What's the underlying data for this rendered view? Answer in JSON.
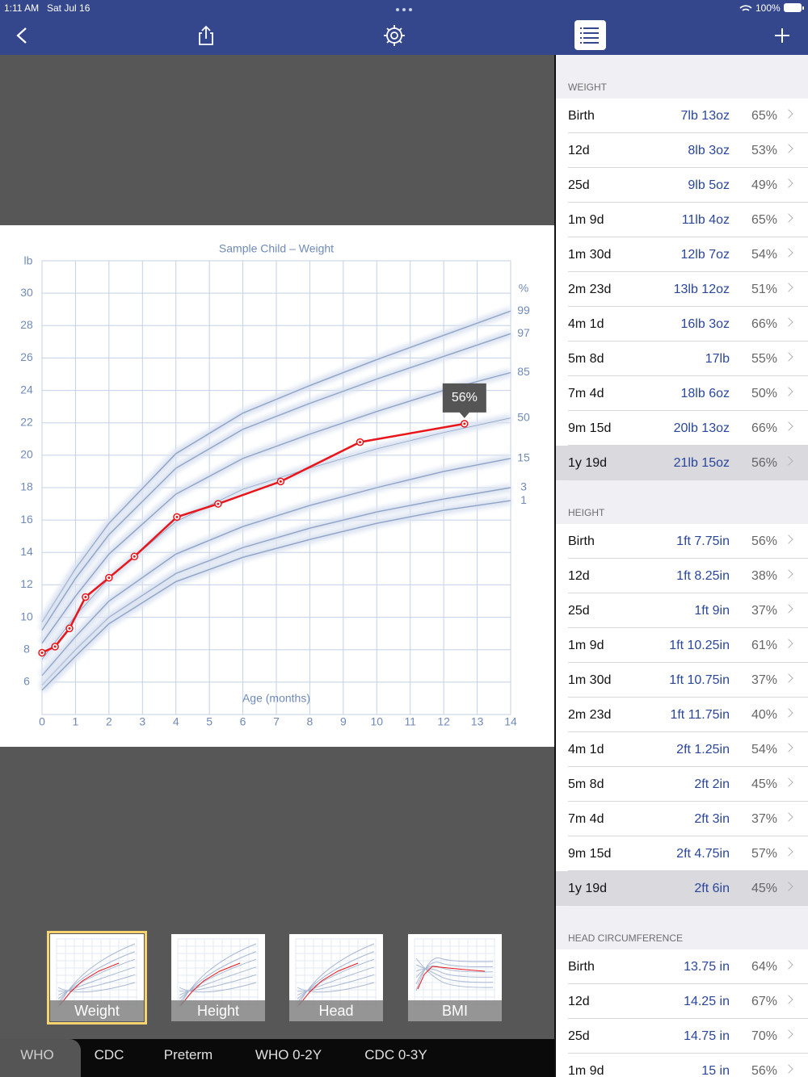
{
  "status_bar": {
    "time": "1:11 AM",
    "date": "Sat Jul 16",
    "battery": "100%"
  },
  "chart_data": {
    "type": "line",
    "title": "Sample Child – Weight",
    "y_unit": "lb",
    "x_label": "Age (months)",
    "x": [
      0,
      0.39,
      0.82,
      1.3,
      2.0,
      2.76,
      4.03,
      5.26,
      7.13,
      9.5,
      12.62
    ],
    "values": [
      7.81,
      8.19,
      9.31,
      11.25,
      12.44,
      13.75,
      16.19,
      17,
      18.38,
      20.81,
      21.94
    ],
    "color": "#e8161b",
    "annotation": "56%",
    "percentile_label": "%",
    "percentile_x": [
      0,
      1,
      2,
      4,
      6,
      8,
      10,
      12,
      14
    ],
    "percentile_series": [
      {
        "name": "99",
        "color": "#8ea3c6",
        "values": [
          9.7,
          13.0,
          15.8,
          20.1,
          22.6,
          24.3,
          25.9,
          27.4,
          28.9
        ]
      },
      {
        "name": "97",
        "color": "#8ea3c6",
        "values": [
          9.2,
          12.4,
          15.1,
          19.2,
          21.6,
          23.2,
          24.7,
          26.1,
          27.5
        ]
      },
      {
        "name": "85",
        "color": "#8ea3c6",
        "values": [
          8.4,
          11.3,
          13.9,
          17.6,
          19.8,
          21.3,
          22.7,
          24.0,
          25.1
        ]
      },
      {
        "name": "50",
        "color": "#8ea3c6",
        "values": [
          7.4,
          10.1,
          12.4,
          15.9,
          17.9,
          19.2,
          20.4,
          21.4,
          22.3
        ]
      },
      {
        "name": "15",
        "color": "#8ea3c6",
        "values": [
          6.4,
          8.8,
          11.0,
          13.9,
          15.6,
          16.9,
          18.0,
          19.0,
          19.8
        ]
      },
      {
        "name": "3",
        "color": "#8ea3c6",
        "values": [
          5.8,
          8.0,
          10.0,
          12.7,
          14.3,
          15.5,
          16.5,
          17.3,
          18.0
        ]
      },
      {
        "name": "1",
        "color": "#8ea3c6",
        "values": [
          5.5,
          7.6,
          9.6,
          12.2,
          13.7,
          14.8,
          15.8,
          16.6,
          17.2
        ]
      }
    ],
    "xlim": [
      0,
      14
    ],
    "xticks": [
      0,
      1,
      2,
      3,
      4,
      5,
      6,
      7,
      8,
      9,
      10,
      11,
      12,
      13,
      14
    ],
    "ylim": [
      4,
      32
    ],
    "yticks": [
      6,
      8,
      10,
      12,
      14,
      16,
      18,
      20,
      22,
      24,
      26,
      28,
      30
    ],
    "grid": true
  },
  "measurements": [
    {
      "title": "WEIGHT",
      "selected_row": 10,
      "rows": [
        [
          "Birth",
          "7lb 13oz",
          "65%"
        ],
        [
          "12d",
          "8lb 3oz",
          "53%"
        ],
        [
          "25d",
          "9lb 5oz",
          "49%"
        ],
        [
          "1m 9d",
          "11lb 4oz",
          "65%"
        ],
        [
          "1m 30d",
          "12lb 7oz",
          "54%"
        ],
        [
          "2m 23d",
          "13lb 12oz",
          "51%"
        ],
        [
          "4m 1d",
          "16lb 3oz",
          "66%"
        ],
        [
          "5m 8d",
          "17lb",
          "55%"
        ],
        [
          "7m 4d",
          "18lb 6oz",
          "50%"
        ],
        [
          "9m 15d",
          "20lb 13oz",
          "66%"
        ],
        [
          "1y 19d",
          "21lb 15oz",
          "56%"
        ]
      ]
    },
    {
      "title": "HEIGHT",
      "selected_row": 10,
      "rows": [
        [
          "Birth",
          "1ft 7.75in",
          "56%"
        ],
        [
          "12d",
          "1ft 8.25in",
          "38%"
        ],
        [
          "25d",
          "1ft 9in",
          "37%"
        ],
        [
          "1m 9d",
          "1ft 10.25in",
          "61%"
        ],
        [
          "1m 30d",
          "1ft 10.75in",
          "37%"
        ],
        [
          "2m 23d",
          "1ft 11.75in",
          "40%"
        ],
        [
          "4m 1d",
          "2ft 1.25in",
          "54%"
        ],
        [
          "5m 8d",
          "2ft 2in",
          "45%"
        ],
        [
          "7m 4d",
          "2ft 3in",
          "37%"
        ],
        [
          "9m 15d",
          "2ft 4.75in",
          "57%"
        ],
        [
          "1y 19d",
          "2ft 6in",
          "45%"
        ]
      ]
    },
    {
      "title": "HEAD CIRCUMFERENCE",
      "rows": [
        [
          "Birth",
          "13.75 in",
          "64%"
        ],
        [
          "12d",
          "14.25 in",
          "67%"
        ],
        [
          "25d",
          "14.75 in",
          "70%"
        ],
        [
          "1m 9d",
          "15 in",
          "56%"
        ]
      ]
    }
  ],
  "thumbnails": [
    "Weight",
    "Height",
    "Head",
    "BMI"
  ],
  "tabs": [
    "WHO",
    "CDC",
    "Preterm",
    "WHO 0-2Y",
    "CDC 0-3Y"
  ]
}
